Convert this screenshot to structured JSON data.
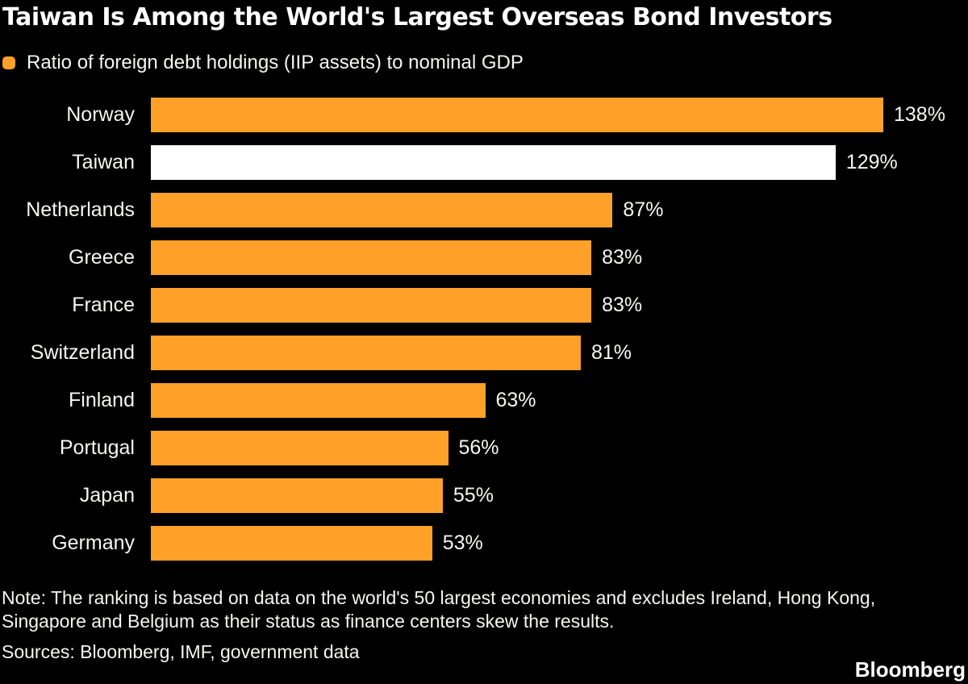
{
  "header": {
    "title": "Taiwan Is Among the World's Largest Overseas Bond Investors"
  },
  "legend": {
    "label": "Ratio of foreign debt holdings (IIP assets) to nominal GDP",
    "swatch_color": "#FFA028"
  },
  "chart_data": {
    "type": "bar",
    "orientation": "horizontal",
    "title": "Taiwan Is Among the World's Largest Overseas Bond Investors",
    "legend_entry": "Ratio of foreign debt holdings (IIP assets) to nominal GDP",
    "categories": [
      "Norway",
      "Taiwan",
      "Netherlands",
      "Greece",
      "France",
      "Switzerland",
      "Finland",
      "Portugal",
      "Japan",
      "Germany"
    ],
    "values": [
      138,
      129,
      87,
      83,
      83,
      81,
      63,
      56,
      55,
      53
    ],
    "value_labels": [
      "138%",
      "129%",
      "87%",
      "83%",
      "83%",
      "81%",
      "63%",
      "56%",
      "55%",
      "53%"
    ],
    "unit": "%",
    "xlim": [
      0,
      138
    ],
    "grid": false,
    "value_label_position": "right-of-bar",
    "bar_color": "#FFA028",
    "highlight_index": 1,
    "highlight_color": "#FFFFFF",
    "background_color": "#000000",
    "text_color": "#FFFFFF"
  },
  "footer": {
    "note_lines": [
      "Note: The ranking is based on data on the world's 50 largest economies and excludes Ireland, Hong Kong,",
      "Singapore and Belgium as their status as finance centers skew the results."
    ],
    "sources": "Sources: Bloomberg, IMF, government data",
    "brand": "Bloomberg"
  }
}
